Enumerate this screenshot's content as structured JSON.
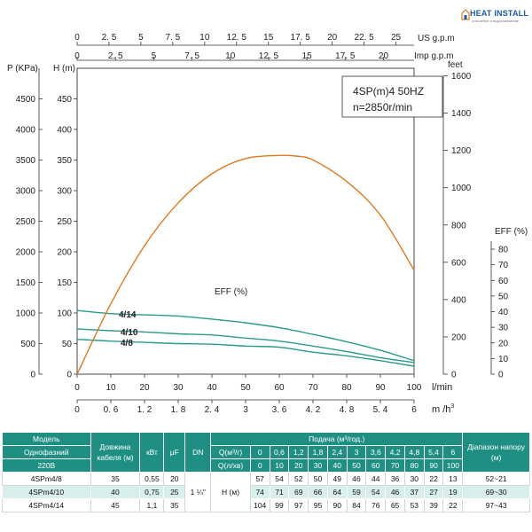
{
  "brand": {
    "name": "HEAT INSTALL",
    "tagline": "отопление и водоснабжение"
  },
  "chart_data": {
    "type": "line",
    "title_line1": "4SP(m)4  50HZ",
    "title_line2": "n=2850r/min",
    "axes": {
      "flow_lmin": {
        "unit": "l/min",
        "range": [
          0,
          100
        ],
        "ticks": [
          0,
          10,
          20,
          30,
          40,
          50,
          60,
          70,
          80,
          90,
          100
        ]
      },
      "flow_m3h": {
        "unit": "m /h",
        "unit_sup": "3",
        "ticks": [
          "0",
          "0. 6",
          "1. 2",
          "1. 8",
          "2. 4",
          "3",
          "3. 6",
          "4. 2",
          "4. 8",
          "5. 4",
          "6"
        ]
      },
      "us_gpm": {
        "unit": "US g.p.m",
        "ticks": [
          "0",
          "2. 5",
          "5",
          "7. 5",
          "10",
          "12. 5",
          "15",
          "17. 5",
          "20",
          "22. 5",
          "25"
        ]
      },
      "imp_gpm": {
        "unit": "Imp g.p.m",
        "ticks": [
          "0",
          "2. 5",
          "5",
          "7. 5",
          "10",
          "12. 5",
          "15",
          "17. 5",
          "20"
        ]
      },
      "head_m": {
        "label": "H (m)",
        "range": [
          0,
          500
        ],
        "ticks": [
          0,
          50,
          100,
          150,
          200,
          250,
          300,
          350,
          400,
          450
        ]
      },
      "pressure_kpa": {
        "label": "P (KPa)",
        "ticks": [
          0,
          500,
          1000,
          1500,
          2000,
          2500,
          3000,
          3500,
          4000,
          4500
        ]
      },
      "feet": {
        "label": "feet",
        "ticks": [
          0,
          200,
          400,
          600,
          800,
          1000,
          1200,
          1400,
          1600
        ]
      },
      "eff_pct": {
        "label": "EFF (%)",
        "ticks": [
          10,
          20,
          30,
          40,
          50,
          60,
          70,
          80
        ]
      }
    },
    "series": [
      {
        "name": "4/14",
        "color": "#2a9a8c",
        "x": [
          0,
          10,
          20,
          30,
          40,
          50,
          60,
          70,
          80,
          90,
          100
        ],
        "y": [
          104,
          99,
          97,
          95,
          90,
          84,
          76,
          65,
          53,
          39,
          22
        ]
      },
      {
        "name": "4/10",
        "color": "#2a9a8c",
        "x": [
          0,
          10,
          20,
          30,
          40,
          50,
          60,
          70,
          80,
          90,
          100
        ],
        "y": [
          74,
          71,
          69,
          66,
          64,
          59,
          54,
          46,
          37,
          27,
          19
        ]
      },
      {
        "name": "4/8",
        "color": "#2a9a8c",
        "x": [
          0,
          10,
          20,
          30,
          40,
          50,
          60,
          70,
          80,
          90,
          100
        ],
        "y": [
          57,
          54,
          52,
          50,
          49,
          46,
          44,
          36,
          30,
          22,
          13
        ]
      },
      {
        "name": "EFF (%)",
        "color": "#e07a1f",
        "x": [
          0,
          10,
          20,
          30,
          40,
          50,
          60,
          65,
          70,
          80,
          90,
          100
        ],
        "y": [
          0,
          23,
          42,
          56,
          65.5,
          70.5,
          71.5,
          71.3,
          70,
          63,
          52,
          34
        ]
      }
    ]
  },
  "table": {
    "headers": {
      "model": "Модель",
      "phase": "Однофазний",
      "voltage": "220В",
      "cable": "Довжина кабеля (м)",
      "kw": "кВт",
      "uf": "μF",
      "dn": "DN",
      "flow": "Подача (м³/год.)",
      "q_m3": "Q(м³/г)",
      "q_lmin": "Q(л/хв)",
      "range": "Діапазон напору (м)"
    },
    "q_m3_values": [
      "0",
      "0,6",
      "1,2",
      "1,8",
      "2,4",
      "3",
      "3,6",
      "4,2",
      "4,8",
      "5,4",
      "6"
    ],
    "q_l_values": [
      "0",
      "10",
      "20",
      "30",
      "40",
      "50",
      "60",
      "70",
      "80",
      "90",
      "100"
    ],
    "dn_value": "1 ¼\"",
    "h_label": "Н (м)",
    "rows": [
      {
        "model": "4SPm4/8",
        "cable": "35",
        "kw": "0,55",
        "uf": "20",
        "heads": [
          "57",
          "54",
          "52",
          "50",
          "49",
          "46",
          "44",
          "36",
          "30",
          "22",
          "13"
        ],
        "range": "52~21"
      },
      {
        "model": "4SPm4/10",
        "cable": "40",
        "kw": "0,75",
        "uf": "25",
        "heads": [
          "74",
          "71",
          "69",
          "66",
          "64",
          "59",
          "54",
          "46",
          "37",
          "27",
          "19"
        ],
        "range": "69~30"
      },
      {
        "model": "4SPm4/14",
        "cable": "45",
        "kw": "1,1",
        "uf": "35",
        "heads": [
          "104",
          "99",
          "97",
          "95",
          "90",
          "84",
          "76",
          "65",
          "53",
          "39",
          "22"
        ],
        "range": "97~43"
      }
    ]
  }
}
